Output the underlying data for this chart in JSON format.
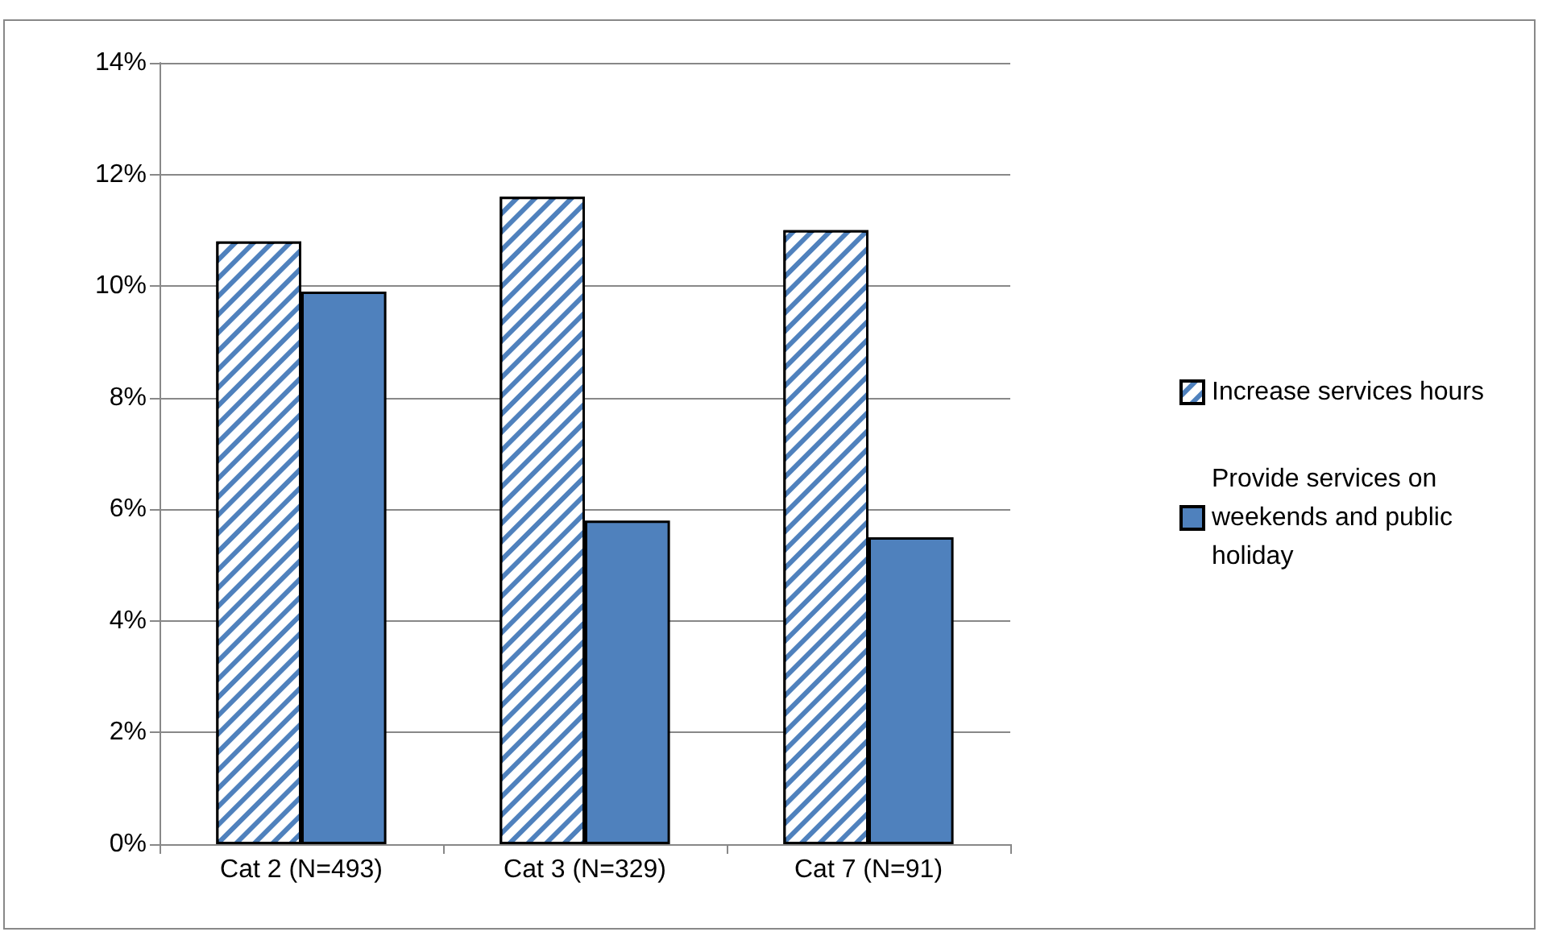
{
  "chart_data": {
    "type": "bar",
    "categories": [
      "Cat 2 (N=493)",
      "Cat 3 (N=329)",
      "Cat 7 (N=91)"
    ],
    "series": [
      {
        "name": "Increase services hours",
        "color": "#4f81bd",
        "values": [
          10.8,
          11.6,
          11.0
        ]
      },
      {
        "name": "Provide services on weekends and public holiday",
        "color": "#4f81bd",
        "values": [
          9.9,
          5.8,
          5.5
        ]
      }
    ],
    "ylim": [
      0,
      14
    ],
    "yticks": [
      {
        "value": 0,
        "label": "0%"
      },
      {
        "value": 2,
        "label": "2%"
      },
      {
        "value": 4,
        "label": "4%"
      },
      {
        "value": 6,
        "label": "6%"
      },
      {
        "value": 8,
        "label": "8%"
      },
      {
        "value": 10,
        "label": "10%"
      },
      {
        "value": 12,
        "label": "12%"
      },
      {
        "value": 14,
        "label": "14%"
      }
    ],
    "grid": "y",
    "legend": "right"
  }
}
